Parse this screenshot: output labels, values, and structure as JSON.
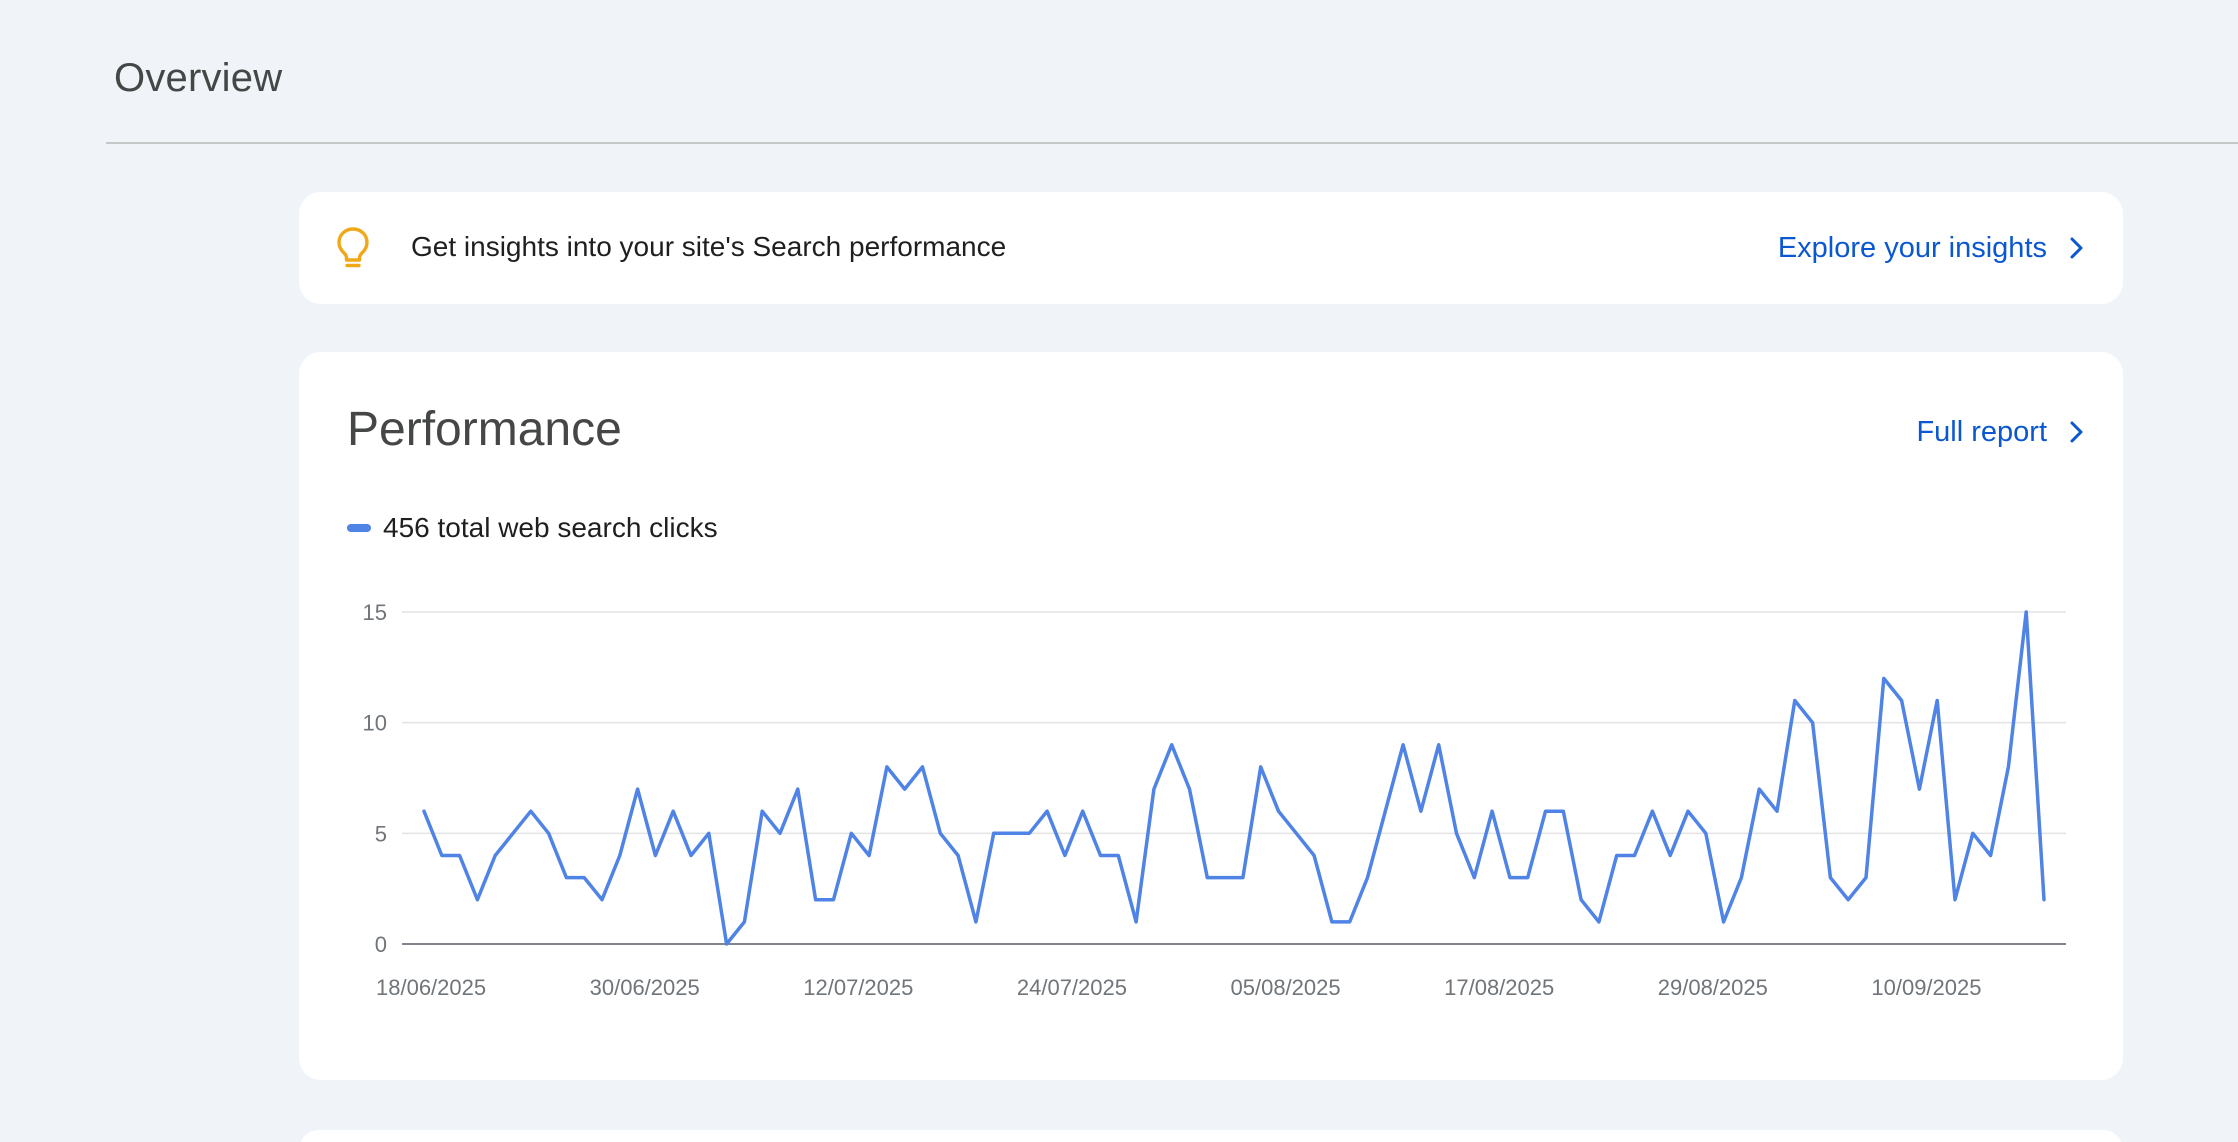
{
  "header": {
    "title": "Overview"
  },
  "insights": {
    "text": "Get insights into your site's Search performance",
    "link_label": "Explore your insights",
    "icon": "lightbulb-icon",
    "icon_color": "#f0a818"
  },
  "performance": {
    "title": "Performance",
    "link_label": "Full report",
    "legend_label": "456 total web search clicks",
    "line_color": "#4f83e5"
  },
  "colors": {
    "link": "#0b57d0",
    "background": "#f0f4f9"
  },
  "chart_data": {
    "type": "line",
    "title": "",
    "xlabel": "",
    "ylabel": "",
    "ylim": [
      0,
      15
    ],
    "yticks": [
      "0",
      "5",
      "10",
      "15"
    ],
    "xtick_labels": [
      "18/06/2025",
      "30/06/2025",
      "12/07/2025",
      "24/07/2025",
      "05/08/2025",
      "17/08/2025",
      "29/08/2025",
      "10/09/2025"
    ],
    "x_start": "18/06/2025",
    "x_end": "18/09/2025",
    "grid": true,
    "series": [
      {
        "name": "456 total web search clicks",
        "values": [
          6,
          4,
          4,
          2,
          4,
          5,
          6,
          5,
          3,
          3,
          2,
          4,
          7,
          4,
          6,
          4,
          5,
          0,
          1,
          6,
          5,
          7,
          2,
          2,
          5,
          4,
          8,
          7,
          8,
          5,
          4,
          1,
          5,
          5,
          5,
          6,
          4,
          6,
          4,
          4,
          1,
          7,
          9,
          7,
          3,
          3,
          3,
          8,
          6,
          5,
          4,
          1,
          1,
          3,
          6,
          9,
          6,
          9,
          5,
          3,
          6,
          3,
          3,
          6,
          6,
          2,
          1,
          4,
          4,
          6,
          4,
          6,
          5,
          1,
          3,
          7,
          6,
          11,
          10,
          3,
          2,
          3,
          12,
          11,
          7,
          11,
          2,
          5,
          4,
          8,
          15,
          2
        ]
      }
    ]
  }
}
